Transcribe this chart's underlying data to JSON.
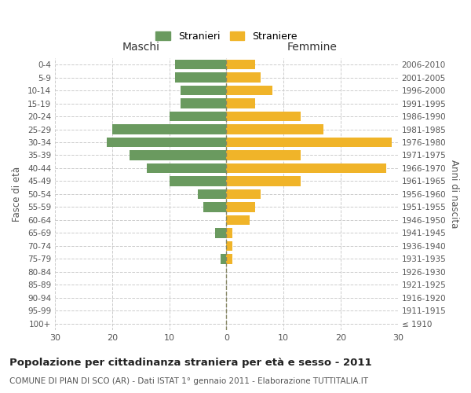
{
  "age_groups": [
    "100+",
    "95-99",
    "90-94",
    "85-89",
    "80-84",
    "75-79",
    "70-74",
    "65-69",
    "60-64",
    "55-59",
    "50-54",
    "45-49",
    "40-44",
    "35-39",
    "30-34",
    "25-29",
    "20-24",
    "15-19",
    "10-14",
    "5-9",
    "0-4"
  ],
  "birth_years": [
    "≤ 1910",
    "1911-1915",
    "1916-1920",
    "1921-1925",
    "1926-1930",
    "1931-1935",
    "1936-1940",
    "1941-1945",
    "1946-1950",
    "1951-1955",
    "1956-1960",
    "1961-1965",
    "1966-1970",
    "1971-1975",
    "1976-1980",
    "1981-1985",
    "1986-1990",
    "1991-1995",
    "1996-2000",
    "2001-2005",
    "2006-2010"
  ],
  "males": [
    0,
    0,
    0,
    0,
    0,
    1,
    0,
    2,
    0,
    4,
    5,
    10,
    14,
    17,
    21,
    20,
    10,
    8,
    8,
    9,
    9
  ],
  "females": [
    0,
    0,
    0,
    0,
    0,
    1,
    1,
    1,
    4,
    5,
    6,
    13,
    28,
    13,
    29,
    17,
    13,
    5,
    8,
    6,
    5
  ],
  "male_color": "#6a9a5f",
  "female_color": "#f0b429",
  "background_color": "#ffffff",
  "grid_color": "#cccccc",
  "title": "Popolazione per cittadinanza straniera per età e sesso - 2011",
  "subtitle": "COMUNE DI PIAN DI SCO (AR) - Dati ISTAT 1° gennaio 2011 - Elaborazione TUTTITALIA.IT",
  "xlabel_left": "Maschi",
  "xlabel_right": "Femmine",
  "ylabel_left": "Fasce di età",
  "ylabel_right": "Anni di nascita",
  "legend_male": "Stranieri",
  "legend_female": "Straniere",
  "xlim": 30,
  "center_line_color": "#888866"
}
